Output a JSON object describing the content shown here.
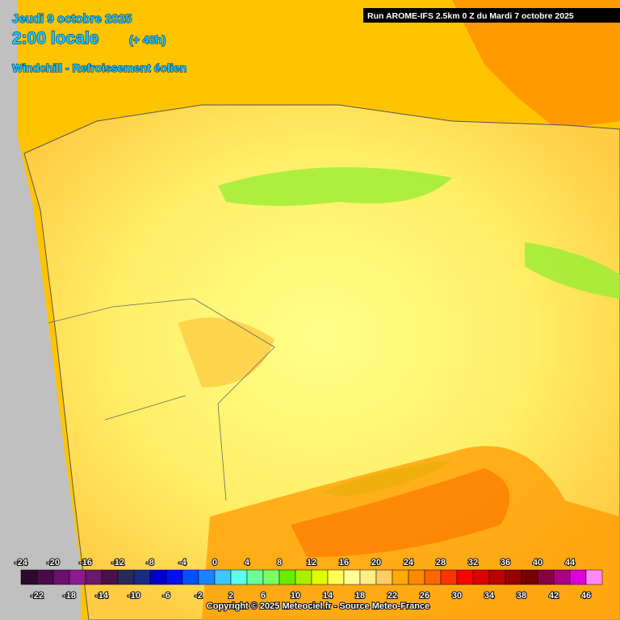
{
  "header": {
    "date": "Jeudi 9 octobre 2025",
    "time": "2:00 locale",
    "lead": "(+ 48h)",
    "title": "Windchill - Refroissement éolien",
    "run": "Run AROME-IFS 2.5km 0 Z du Mardi 7 octobre 2025"
  },
  "legend": {
    "values": [
      -24,
      -22,
      -20,
      -18,
      -16,
      -14,
      -12,
      -10,
      -8,
      -6,
      -4,
      -2,
      0,
      2,
      4,
      6,
      8,
      10,
      12,
      14,
      16,
      18,
      20,
      22,
      24,
      26,
      28,
      30,
      32,
      34,
      36,
      38,
      40,
      42,
      44,
      46
    ],
    "colors": [
      "#2d0a2d",
      "#4b0b4b",
      "#6e0f6e",
      "#8f1a8f",
      "#6a1a6a",
      "#4a104a",
      "#2a2a5a",
      "#1a2a8a",
      "#0000cc",
      "#0010ee",
      "#0050ff",
      "#1a84ff",
      "#3ac8ff",
      "#5affee",
      "#66ff99",
      "#77ff66",
      "#66ee00",
      "#aaee00",
      "#ddff00",
      "#ffff55",
      "#ffff99",
      "#ffee88",
      "#ffcc66",
      "#ffaa00",
      "#ff8800",
      "#ff6600",
      "#ff3300",
      "#ff0000",
      "#dd0000",
      "#bb0000",
      "#990000",
      "#770000",
      "#880044",
      "#aa0088",
      "#dd00dd",
      "#ff88ff"
    ]
  },
  "footer": {
    "copyright": "Copyright © 2025 Meteociel.fr - Source Meteo-France"
  }
}
